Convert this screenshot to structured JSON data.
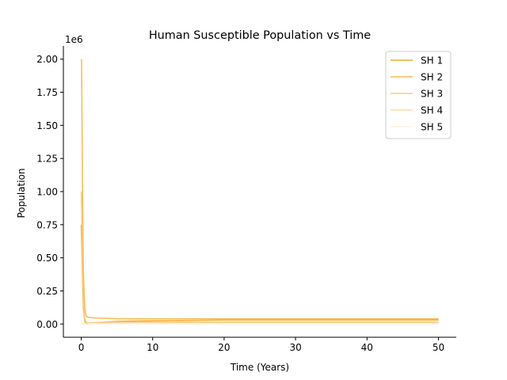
{
  "chart_data": {
    "type": "line",
    "title": "Human Susceptible Population vs Time",
    "xlabel": "Time (Years)",
    "ylabel": "Population",
    "y_offset_label": "1e6",
    "xlim": [
      -2.5,
      52.5
    ],
    "ylim": [
      -0.1,
      2.1
    ],
    "x_ticks": [
      0,
      10,
      20,
      30,
      40,
      50
    ],
    "x_tick_labels": [
      "0",
      "10",
      "20",
      "30",
      "40",
      "50"
    ],
    "y_ticks": [
      0.0,
      0.25,
      0.5,
      0.75,
      1.0,
      1.25,
      1.5,
      1.75,
      2.0
    ],
    "y_tick_labels": [
      "0.00",
      "0.25",
      "0.50",
      "0.75",
      "1.00",
      "1.25",
      "1.50",
      "1.75",
      "2.00"
    ],
    "grid": false,
    "legend_position": "top-right",
    "series": [
      {
        "name": "SH 1",
        "color": "#f5a623",
        "opacity": 0.95,
        "x": [
          0,
          0.1,
          0.2,
          0.3,
          0.5,
          0.8,
          1,
          2,
          5,
          10,
          20,
          30,
          40,
          50
        ],
        "y": [
          0.75,
          0.55,
          0.3,
          0.12,
          0.02,
          0.0,
          0.002,
          0.01,
          0.02,
          0.025,
          0.03,
          0.03,
          0.03,
          0.03
        ]
      },
      {
        "name": "SH 2",
        "color": "#f8b74a",
        "opacity": 0.95,
        "x": [
          0,
          0.05,
          0.1,
          0.2,
          0.3,
          0.5,
          0.7,
          1,
          2,
          5,
          10,
          20,
          30,
          40,
          50
        ],
        "y": [
          2.0,
          1.98,
          1.6,
          0.9,
          0.4,
          0.12,
          0.06,
          0.05,
          0.045,
          0.04,
          0.04,
          0.04,
          0.04,
          0.04,
          0.04
        ]
      },
      {
        "name": "SH 3",
        "color": "#fac878",
        "opacity": 0.95,
        "x": [
          0,
          0.1,
          0.2,
          0.3,
          0.5,
          0.8,
          1,
          2,
          5,
          10,
          20,
          30,
          40,
          50
        ],
        "y": [
          1.0,
          0.75,
          0.4,
          0.15,
          0.03,
          0.01,
          0.008,
          0.01,
          0.015,
          0.015,
          0.015,
          0.015,
          0.015,
          0.015
        ]
      },
      {
        "name": "SH 4",
        "color": "#fcd9a2",
        "opacity": 0.95,
        "x": [
          0,
          0.5,
          1,
          2,
          5,
          10,
          20,
          30,
          40,
          50
        ],
        "y": [
          0.005,
          0.004,
          0.004,
          0.005,
          0.006,
          0.007,
          0.008,
          0.008,
          0.008,
          0.008
        ]
      },
      {
        "name": "SH 5",
        "color": "#fdeedd",
        "opacity": 0.95,
        "x": [
          0,
          0.5,
          1,
          2,
          5,
          10,
          20,
          30,
          40,
          50
        ],
        "y": [
          0.002,
          0.002,
          0.002,
          0.003,
          0.003,
          0.003,
          0.003,
          0.003,
          0.003,
          0.003
        ]
      }
    ]
  }
}
